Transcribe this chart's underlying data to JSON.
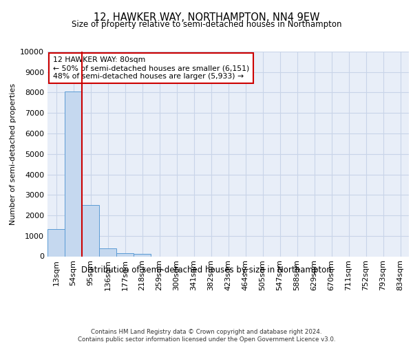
{
  "title": "12, HAWKER WAY, NORTHAMPTON, NN4 9EW",
  "subtitle": "Size of property relative to semi-detached houses in Northampton",
  "xlabel": "Distribution of semi-detached houses by size in Northampton",
  "ylabel": "Number of semi-detached properties",
  "bar_values": [
    1320,
    8050,
    2500,
    380,
    140,
    110,
    0,
    0,
    0,
    0,
    0,
    0,
    0,
    0,
    0,
    0,
    0,
    0,
    0,
    0,
    0
  ],
  "bar_labels": [
    "13sqm",
    "54sqm",
    "95sqm",
    "136sqm",
    "177sqm",
    "218sqm",
    "259sqm",
    "300sqm",
    "341sqm",
    "382sqm",
    "423sqm",
    "464sqm",
    "505sqm",
    "547sqm",
    "588sqm",
    "629sqm",
    "670sqm",
    "711sqm",
    "752sqm",
    "793sqm",
    "834sqm"
  ],
  "bar_color": "#c5d8ef",
  "bar_edge_color": "#5b9bd5",
  "vline_color": "#cc0000",
  "annotation_text": "12 HAWKER WAY: 80sqm\n← 50% of semi-detached houses are smaller (6,151)\n48% of semi-detached houses are larger (5,933) →",
  "annotation_box_color": "#ffffff",
  "annotation_box_edge": "#cc0000",
  "ylim": [
    0,
    10000
  ],
  "yticks": [
    0,
    1000,
    2000,
    3000,
    4000,
    5000,
    6000,
    7000,
    8000,
    9000,
    10000
  ],
  "grid_color": "#c8d4e8",
  "background_color": "#e8eef8",
  "footer_line1": "Contains HM Land Registry data © Crown copyright and database right 2024.",
  "footer_line2": "Contains public sector information licensed under the Open Government Licence v3.0."
}
